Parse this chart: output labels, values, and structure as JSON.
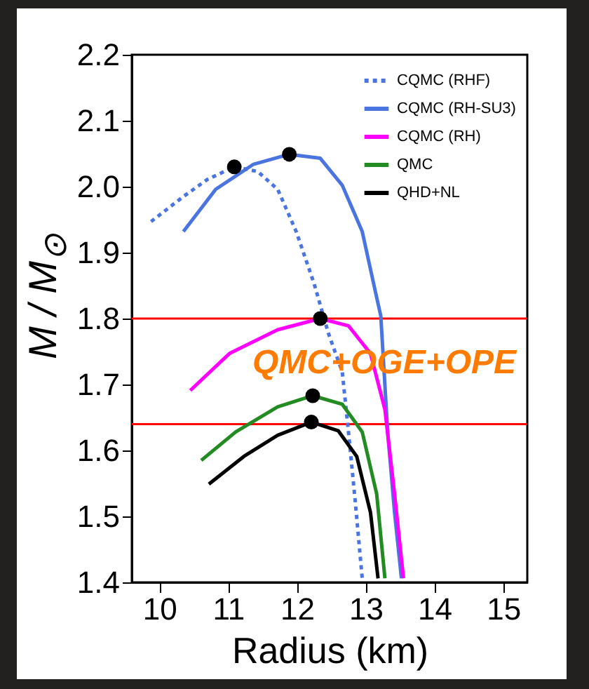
{
  "chart_data": {
    "type": "line",
    "xlabel": "Radius (km)",
    "ylabel": "M / M$_{⊙}$",
    "xlim": [
      9.6,
      15.35
    ],
    "ylim": [
      1.4,
      2.2
    ],
    "xticks": [
      10,
      11,
      12,
      13,
      14,
      15
    ],
    "yticks": [
      {
        "value": 1.4,
        "label": "1.4"
      },
      {
        "value": 1.5,
        "label": "1.5"
      },
      {
        "value": 1.6,
        "label": "1.6"
      },
      {
        "value": 1.7,
        "label": "1.7"
      },
      {
        "value": 1.8,
        "label": "1.8"
      },
      {
        "value": 1.9,
        "label": "1.9"
      },
      {
        "value": 2.0,
        "label": "2.0"
      },
      {
        "value": 2.1,
        "label": "2.1"
      },
      {
        "value": 2.2,
        "label": "2.2"
      }
    ],
    "legend": "top right",
    "grid": false,
    "marker": "none",
    "ref_lines": [
      {
        "axis": "y",
        "value": 1.8,
        "color": "#ff0000"
      },
      {
        "axis": "y",
        "value": 1.64,
        "color": "#ff0000"
      }
    ],
    "annotations": [
      "QMC+OGE+OPE"
    ],
    "series": [
      {
        "name": "CQMC (RHF)",
        "color": "#4a74e0",
        "line_style": "dotted",
        "x": [
          9.88,
          10.35,
          10.7,
          11.09,
          11.43,
          11.72,
          11.99,
          12.25,
          12.46,
          12.66,
          12.75,
          12.85,
          12.95
        ],
        "values": [
          1.947,
          1.985,
          2.011,
          2.03,
          2.023,
          1.996,
          1.932,
          1.853,
          1.777,
          1.719,
          1.628,
          1.521,
          1.406
        ]
      },
      {
        "name": "CQMC (RH-SU3)",
        "color": "#4a74e0",
        "line_style": "solid",
        "x": [
          10.35,
          10.82,
          11.37,
          11.89,
          12.34,
          12.66,
          12.95,
          13.16,
          13.22,
          13.32,
          13.42,
          13.52
        ],
        "values": [
          1.932,
          1.996,
          2.034,
          2.049,
          2.043,
          2.002,
          1.932,
          1.832,
          1.804,
          1.628,
          1.506,
          1.406
        ]
      },
      {
        "name": "CQMC (RH)",
        "color": "#ff00ff",
        "line_style": "solid",
        "x": [
          10.45,
          11.02,
          11.72,
          12.34,
          12.75,
          13.07,
          13.28,
          13.42,
          13.55
        ],
        "values": [
          1.691,
          1.747,
          1.783,
          1.8,
          1.789,
          1.747,
          1.662,
          1.534,
          1.406
        ]
      },
      {
        "name": "QMC",
        "color": "#228b22",
        "line_style": "solid",
        "x": [
          10.61,
          11.11,
          11.72,
          12.23,
          12.66,
          12.95,
          13.16,
          13.28
        ],
        "values": [
          1.585,
          1.628,
          1.666,
          1.683,
          1.67,
          1.628,
          1.534,
          1.406
        ]
      },
      {
        "name": "QHD+NL",
        "color": "#000000",
        "line_style": "solid",
        "x": [
          10.72,
          11.23,
          11.72,
          12.21,
          12.6,
          12.87,
          13.07,
          13.18
        ],
        "values": [
          1.549,
          1.591,
          1.623,
          1.643,
          1.63,
          1.591,
          1.506,
          1.406
        ]
      },
      {
        "type": "scatter",
        "color": "#000000",
        "marker": "circle",
        "x": [
          11.09,
          11.89,
          12.34,
          12.23,
          12.21
        ],
        "values": [
          2.03,
          2.049,
          1.8,
          1.683,
          1.643
        ]
      }
    ]
  }
}
